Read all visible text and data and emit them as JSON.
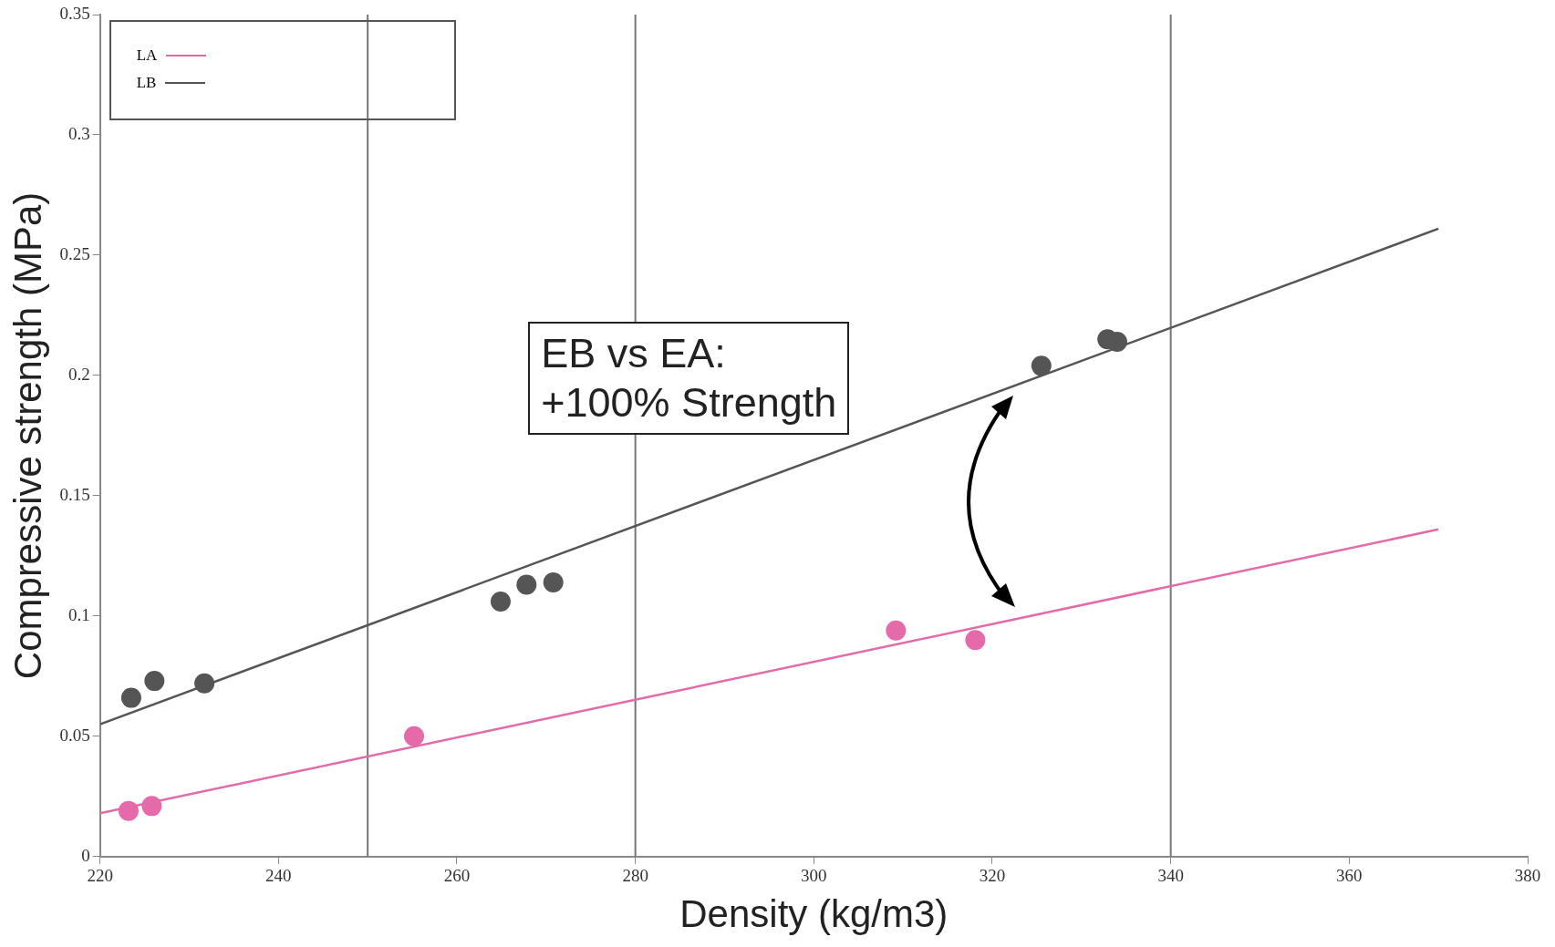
{
  "chart_data": {
    "type": "scatter",
    "xlabel": "Density (kg/m3)",
    "ylabel": "Compressive strength (MPa)",
    "xlim": [
      220,
      380
    ],
    "xticks": [
      220,
      240,
      260,
      280,
      300,
      320,
      340,
      360,
      380
    ],
    "ylim": [
      0,
      0.35
    ],
    "yticks": [
      0,
      0.05,
      0.1,
      0.15,
      0.2,
      0.25,
      0.3,
      0.35
    ],
    "grid": false,
    "legend": "top left",
    "marker": "circle",
    "series": [
      {
        "color": "#e46aa9",
        "x": [
          223.2,
          225.8,
          255.2,
          309.2,
          318.1
        ],
        "values": [
          0.019,
          0.021,
          0.05,
          0.094,
          0.09
        ]
      },
      {
        "color": "#555555",
        "x": [
          223.5,
          226.1,
          231.7,
          264.9,
          267.8,
          270.8,
          325.5,
          332.9,
          334.0
        ],
        "values": [
          0.066,
          0.073,
          0.072,
          0.106,
          0.113,
          0.114,
          0.204,
          0.215,
          0.214
        ]
      },
      {
        "type": "line",
        "name": "LA",
        "color": "#e46aa9",
        "marker": "none",
        "line_style": "solid",
        "x": [
          220,
          370
        ],
        "values": [
          0.018,
          0.136
        ]
      },
      {
        "type": "line",
        "name": "LB",
        "color": "#555555",
        "marker": "none",
        "line_style": "solid",
        "x": [
          220,
          370
        ],
        "values": [
          0.055,
          0.261
        ]
      }
    ],
    "ref_lines": [
      {
        "axis": "x",
        "value": 250,
        "color": "#777777"
      },
      {
        "axis": "x",
        "value": 280,
        "color": "#777777"
      },
      {
        "axis": "x",
        "value": 340,
        "color": "#777777"
      }
    ],
    "annotations": [
      "EB vs EA:\n+100% Strength"
    ]
  }
}
